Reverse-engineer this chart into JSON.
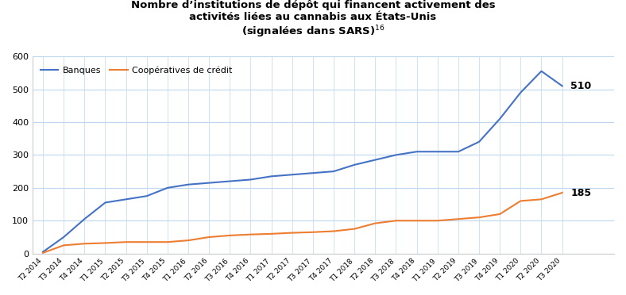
{
  "title": "Nombre d’institutions de dépôt qui financent activement des\nactivités liées au cannabis aux États-Unis\n(signalées dans SARS)",
  "superscript": "16",
  "legend_banks": "Banques",
  "legend_credit": "Coopératives de crédit",
  "label_banks_end": "510",
  "label_credit_end": "185",
  "color_banks": "#4472C4",
  "color_credit": "#ED7D31",
  "ylim": [
    0,
    600
  ],
  "yticks": [
    0,
    100,
    200,
    300,
    400,
    500,
    600
  ],
  "background_color": "#FFFFFF",
  "grid_color": "#BDD7EE",
  "labels": [
    "T2 2014",
    "T3 2014",
    "T4 2014",
    "T1 2015",
    "T2 2015",
    "T3 2015",
    "T4 2015",
    "T1 2016",
    "T2 2016",
    "T3 2016",
    "T4 2016",
    "T1 2017",
    "T2 2017",
    "T3 2017",
    "T4 2017",
    "T1 2018",
    "T2 2018",
    "T3 2018",
    "T4 2018",
    "T1 2019",
    "T2 2019",
    "T3 2019",
    "T4 2019",
    "T1 2020",
    "T2 2020",
    "T3 2020"
  ],
  "banks": [
    5,
    50,
    105,
    155,
    165,
    175,
    200,
    210,
    215,
    220,
    225,
    235,
    240,
    245,
    250,
    270,
    285,
    300,
    310,
    310,
    310,
    340,
    410,
    490,
    555,
    510
  ],
  "credits": [
    2,
    25,
    30,
    32,
    35,
    35,
    35,
    40,
    50,
    55,
    58,
    60,
    63,
    65,
    68,
    75,
    92,
    100,
    100,
    100,
    105,
    110,
    120,
    160,
    165,
    185
  ]
}
